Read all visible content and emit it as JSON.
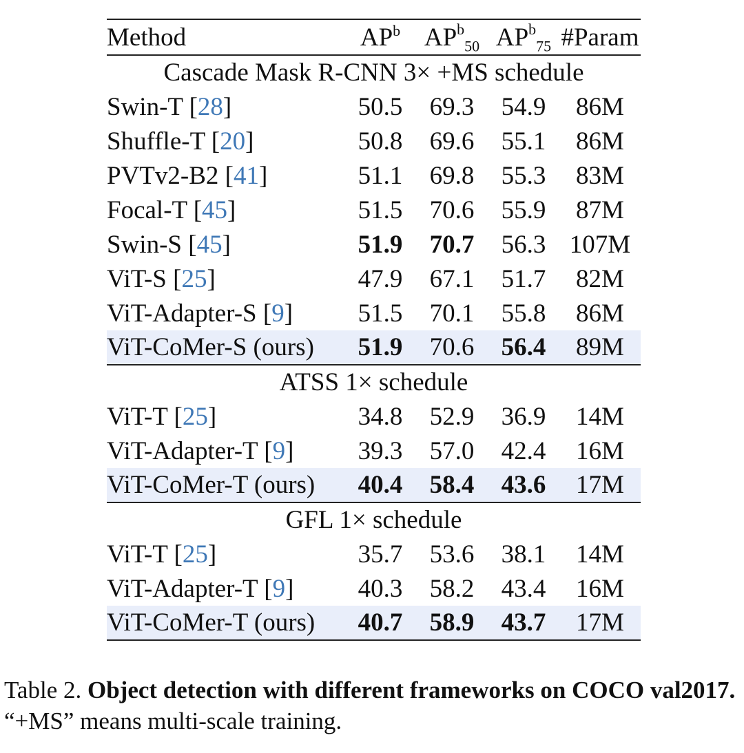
{
  "header": {
    "method": "Method",
    "ap_base": "AP",
    "ap_sup": "b",
    "ap50_sub": "50",
    "ap75_sub": "75",
    "param": "#Param"
  },
  "sections": [
    {
      "title": "Cascade Mask R-CNN 3× +MS schedule",
      "rows": [
        {
          "name": "Swin-T ",
          "ref": "28",
          "ap": "50.5",
          "ap50": "69.3",
          "ap75": "54.9",
          "param": "86M",
          "bold": [],
          "ours": false
        },
        {
          "name": "Shuffle-T ",
          "ref": "20",
          "ap": "50.8",
          "ap50": "69.6",
          "ap75": "55.1",
          "param": "86M",
          "bold": [],
          "ours": false
        },
        {
          "name": "PVTv2-B2 ",
          "ref": "41",
          "ap": "51.1",
          "ap50": "69.8",
          "ap75": "55.3",
          "param": "83M",
          "bold": [],
          "ours": false
        },
        {
          "name": "Focal-T ",
          "ref": "45",
          "ap": "51.5",
          "ap50": "70.6",
          "ap75": "55.9",
          "param": "87M",
          "bold": [],
          "ours": false
        },
        {
          "name": "Swin-S ",
          "ref": "45",
          "ap": "51.9",
          "ap50": "70.7",
          "ap75": "56.3",
          "param": "107M",
          "bold": [
            "ap",
            "ap50"
          ],
          "ours": false
        },
        {
          "name": "ViT-S ",
          "ref": "25",
          "ap": "47.9",
          "ap50": "67.1",
          "ap75": "51.7",
          "param": "82M",
          "bold": [],
          "ours": false
        },
        {
          "name": "ViT-Adapter-S ",
          "ref": "9",
          "ap": "51.5",
          "ap50": "70.1",
          "ap75": "55.8",
          "param": "86M",
          "bold": [],
          "ours": false
        },
        {
          "name": "ViT-CoMer-S (ours)",
          "ref": "",
          "ap": "51.9",
          "ap50": "70.6",
          "ap75": "56.4",
          "param": "89M",
          "bold": [
            "ap",
            "ap75"
          ],
          "ours": true
        }
      ]
    },
    {
      "title": "ATSS 1× schedule",
      "rows": [
        {
          "name": "ViT-T ",
          "ref": "25",
          "ap": "34.8",
          "ap50": "52.9",
          "ap75": "36.9",
          "param": "14M",
          "bold": [],
          "ours": false
        },
        {
          "name": "ViT-Adapter-T ",
          "ref": "9",
          "ap": "39.3",
          "ap50": "57.0",
          "ap75": "42.4",
          "param": "16M",
          "bold": [],
          "ours": false
        },
        {
          "name": "ViT-CoMer-T (ours)",
          "ref": "",
          "ap": "40.4",
          "ap50": "58.4",
          "ap75": "43.6",
          "param": "17M",
          "bold": [
            "ap",
            "ap50",
            "ap75"
          ],
          "ours": true
        }
      ]
    },
    {
      "title": "GFL 1× schedule",
      "rows": [
        {
          "name": "ViT-T ",
          "ref": "25",
          "ap": "35.7",
          "ap50": "53.6",
          "ap75": "38.1",
          "param": "14M",
          "bold": [],
          "ours": false
        },
        {
          "name": "ViT-Adapter-T ",
          "ref": "9",
          "ap": "40.3",
          "ap50": "58.2",
          "ap75": "43.4",
          "param": "16M",
          "bold": [],
          "ours": false
        },
        {
          "name": "ViT-CoMer-T (ours)",
          "ref": "",
          "ap": "40.7",
          "ap50": "58.9",
          "ap75": "43.7",
          "param": "17M",
          "bold": [
            "ap",
            "ap50",
            "ap75"
          ],
          "ours": true
        }
      ]
    }
  ],
  "caption": {
    "label": "Table 2. ",
    "bold_text": "Object detection with different frameworks on COCO val2017.",
    "text": " “+MS” means multi-scale training."
  }
}
